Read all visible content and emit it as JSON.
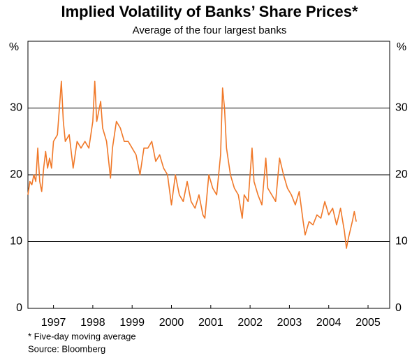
{
  "chart_data": {
    "type": "line",
    "title": "Implied Volatility of Banks’ Share Prices*",
    "subtitle": "Average of the four largest banks",
    "ylabel": "%",
    "y2label": "%",
    "notes": [
      "* Five-day moving average",
      "Source: Bloomberg"
    ],
    "color": "#f07828",
    "xlim": [
      1996.85,
      2006.05
    ],
    "xticks": [
      {
        "value": 1997.5,
        "label": "1997"
      },
      {
        "value": 1998.5,
        "label": "1998"
      },
      {
        "value": 1999.5,
        "label": "1999"
      },
      {
        "value": 2000.5,
        "label": "2000"
      },
      {
        "value": 2001.5,
        "label": "2001"
      },
      {
        "value": 2002.5,
        "label": "2002"
      },
      {
        "value": 2003.5,
        "label": "2003"
      },
      {
        "value": 2004.5,
        "label": "2004"
      },
      {
        "value": 2005.5,
        "label": "2005"
      }
    ],
    "ylim": [
      0,
      40
    ],
    "yticks": [
      0,
      10,
      20,
      30
    ],
    "y2lim": [
      0,
      40
    ],
    "y2ticks": [
      0,
      10,
      20,
      30
    ],
    "grid": true,
    "x": [
      1996.85,
      1996.9,
      1996.95,
      1997.0,
      1997.05,
      1997.1,
      1997.15,
      1997.2,
      1997.25,
      1997.3,
      1997.35,
      1997.4,
      1997.45,
      1997.5,
      1997.6,
      1997.7,
      1997.75,
      1997.8,
      1997.9,
      1998.0,
      1998.1,
      1998.2,
      1998.3,
      1998.4,
      1998.5,
      1998.55,
      1998.6,
      1998.7,
      1998.75,
      1998.85,
      1998.95,
      1999.0,
      1999.1,
      1999.2,
      1999.3,
      1999.4,
      1999.5,
      1999.6,
      1999.7,
      1999.8,
      1999.9,
      2000.0,
      2000.1,
      2000.2,
      2000.3,
      2000.4,
      2000.5,
      2000.6,
      2000.7,
      2000.8,
      2000.9,
      2001.0,
      2001.1,
      2001.2,
      2001.3,
      2001.35,
      2001.45,
      2001.55,
      2001.65,
      2001.75,
      2001.8,
      2001.85,
      2001.9,
      2002.0,
      2002.1,
      2002.2,
      2002.3,
      2002.35,
      2002.45,
      2002.55,
      2002.6,
      2002.7,
      2002.8,
      2002.9,
      2002.95,
      2003.05,
      2003.15,
      2003.25,
      2003.35,
      2003.45,
      2003.55,
      2003.65,
      2003.75,
      2003.85,
      2003.9,
      2004.0,
      2004.1,
      2004.2,
      2004.3,
      2004.4,
      2004.5,
      2004.6,
      2004.7,
      2004.8,
      2004.9,
      2004.95,
      2005.0,
      2005.1,
      2005.15,
      2005.2
    ],
    "values": [
      17,
      19,
      18.5,
      20,
      19,
      24,
      19,
      17.5,
      21,
      23.5,
      21,
      22.5,
      21,
      25,
      26,
      34,
      28,
      25,
      26,
      21,
      25,
      24,
      25,
      24,
      28,
      34,
      28,
      31,
      27,
      25,
      19.5,
      24,
      28,
      27,
      25,
      25,
      24,
      23,
      20,
      24,
      24,
      25,
      22,
      23,
      21,
      20,
      15.5,
      20,
      17,
      16,
      19,
      16,
      15,
      17,
      14,
      13.5,
      20,
      18,
      17,
      23,
      33,
      30,
      24,
      20,
      18,
      17,
      13.5,
      17,
      16,
      24,
      19,
      17,
      15.5,
      22.5,
      18,
      17,
      16,
      22.5,
      20,
      18,
      17,
      15.5,
      17.5,
      13,
      11,
      13,
      12.5,
      14,
      13.5,
      16,
      14,
      15,
      12.5,
      15,
      11.5,
      9,
      10.5,
      13,
      14.5,
      13
    ]
  }
}
